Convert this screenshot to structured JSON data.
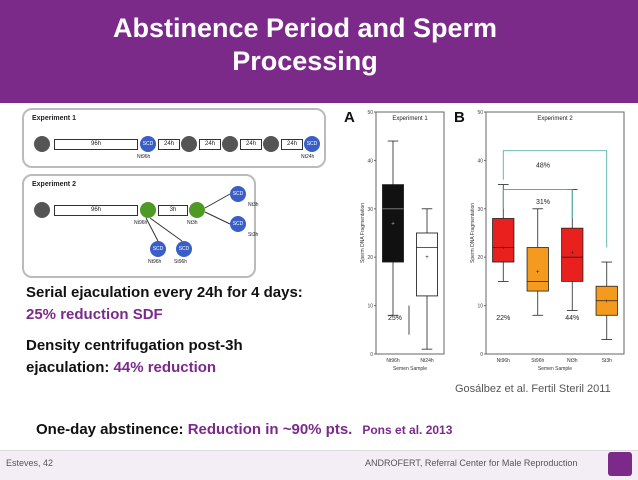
{
  "title": "Abstinence Period and Sperm Processing",
  "experiment1": {
    "label": "Experiment 1",
    "bars": [
      "96h",
      "24h",
      "24h",
      "24h",
      "24h"
    ],
    "nodes": [
      "SCD",
      "SCD"
    ],
    "node_labels": [
      "Nt96h",
      "Nt24h"
    ]
  },
  "experiment2": {
    "label": "Experiment 2",
    "bars": [
      "96h",
      "3h"
    ],
    "node_labels": [
      "Nt96h",
      "Nt3h",
      "Nt3h",
      "St3h",
      "Nt96h",
      "St96h"
    ],
    "scd": "SCD"
  },
  "bullets": [
    {
      "a": "Serial ejaculation every 24h for 4 days:",
      "b": "25% reduction SDF"
    },
    {
      "a": "Density centrifugation post-3h",
      "b1": "ejaculation: ",
      "b2": "44% reduction"
    }
  ],
  "citation": "Gosálbez et al. Fertil Steril 2011",
  "bottom": {
    "a": "One-day abstinence: ",
    "b": "Reduction in ~90% pts.",
    "c": "Pons et al. 2013"
  },
  "footer": {
    "left": "Esteves, 42",
    "right": "ANDROFERT, Referral Center for Male Reproduction"
  },
  "chart_data": [
    {
      "type": "box",
      "panel": "A",
      "title": "Experiment 1",
      "ylabel": "Sperm DNA Fragmentation",
      "xlabel": "Semen Sample",
      "ylim": [
        0,
        50
      ],
      "yticks": [
        0,
        10,
        20,
        30,
        40,
        50
      ],
      "categories": [
        "Nt96h",
        "Nt24h"
      ],
      "boxes": [
        {
          "min": 8,
          "q1": 19,
          "median": 30,
          "q3": 35,
          "max": 44,
          "mean": 27,
          "color": "#111111"
        },
        {
          "min": 1,
          "q1": 12,
          "median": 22,
          "q3": 25,
          "max": 30,
          "mean": 20,
          "color": "#ffffff"
        }
      ],
      "annotations": [
        "25%"
      ]
    },
    {
      "type": "box",
      "panel": "B",
      "title": "Experiment 2",
      "ylabel": "Sperm DNA Fragmentation",
      "xlabel": "Semen Sample",
      "ylim": [
        0,
        50
      ],
      "yticks": [
        0,
        10,
        20,
        30,
        40,
        50
      ],
      "categories": [
        "Nt96h",
        "St96h",
        "Nt3h",
        "St3h"
      ],
      "boxes": [
        {
          "min": 15,
          "q1": 19,
          "median": 22,
          "q3": 28,
          "max": 35,
          "mean": 22,
          "color": "#e8211e"
        },
        {
          "min": 8,
          "q1": 13,
          "median": 15,
          "q3": 22,
          "max": 30,
          "mean": 17,
          "color": "#f49a1e"
        },
        {
          "min": 9,
          "q1": 15,
          "median": 20,
          "q3": 26,
          "max": 34,
          "mean": 21,
          "color": "#e8211e"
        },
        {
          "min": 3,
          "q1": 8,
          "median": 11,
          "q3": 14,
          "max": 19,
          "mean": 11,
          "color": "#f49a1e"
        }
      ],
      "annotations": [
        "48%",
        "31%",
        "22%",
        "44%"
      ]
    }
  ]
}
